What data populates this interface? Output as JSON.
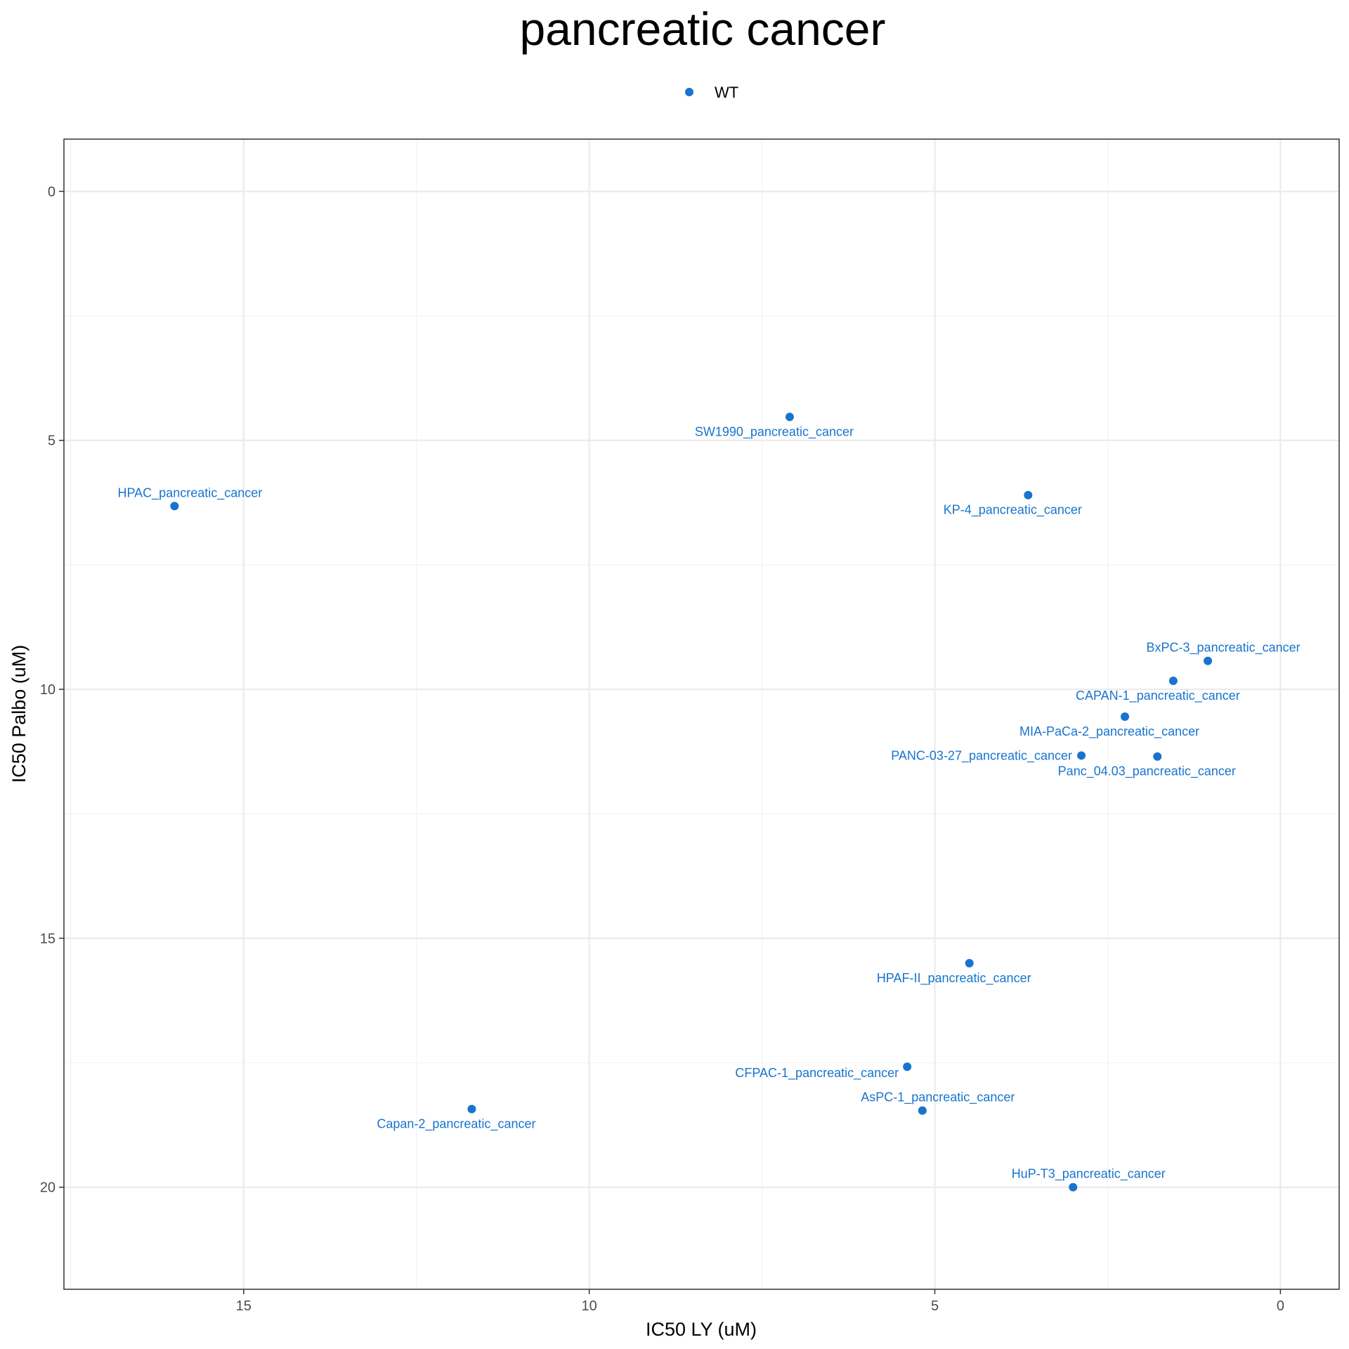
{
  "chart_data": {
    "type": "scatter",
    "title": "pancreatic cancer",
    "xlabel": "IC50 LY (uM)",
    "ylabel": "IC50 Palbo (uM)",
    "xlim": [
      17.6,
      -0.85
    ],
    "ylim": [
      -1.05,
      22.05
    ],
    "x_reversed": true,
    "y_reversed": true,
    "x_ticks": [
      15,
      10,
      5,
      0
    ],
    "y_ticks": [
      0,
      5,
      10,
      15,
      20
    ],
    "grid": true,
    "legend_position": "top",
    "color": "#1874CD",
    "series": [
      {
        "name": "WT",
        "points": [
          {
            "label": "SW1990_pancreatic_cancer",
            "x": 7.1,
            "y": 4.53
          },
          {
            "label": "HPAC_pancreatic_cancer",
            "x": 16.0,
            "y": 6.32
          },
          {
            "label": "KP-4_pancreatic_cancer",
            "x": 3.65,
            "y": 6.1
          },
          {
            "label": "BxPC-3_pancreatic_cancer",
            "x": 1.05,
            "y": 9.43
          },
          {
            "label": "CAPAN-1_pancreatic_cancer",
            "x": 1.55,
            "y": 9.83
          },
          {
            "label": "MIA-PaCa-2_pancreatic_cancer",
            "x": 2.25,
            "y": 10.55
          },
          {
            "label": "PANC-03-27_pancreatic_cancer",
            "x": 2.88,
            "y": 11.33
          },
          {
            "label": "Panc_04.03_pancreatic_cancer",
            "x": 1.78,
            "y": 11.35
          },
          {
            "label": "HPAF-II_pancreatic_cancer",
            "x": 4.5,
            "y": 15.5
          },
          {
            "label": "CFPAC-1_pancreatic_cancer",
            "x": 5.4,
            "y": 17.58
          },
          {
            "label": "Capan-2_pancreatic_cancer",
            "x": 11.7,
            "y": 18.43
          },
          {
            "label": "AsPC-1_pancreatic_cancer",
            "x": 5.18,
            "y": 18.46
          },
          {
            "label": "HuP-T3_pancreatic_cancer",
            "x": 3.0,
            "y": 20.0
          }
        ]
      }
    ]
  }
}
